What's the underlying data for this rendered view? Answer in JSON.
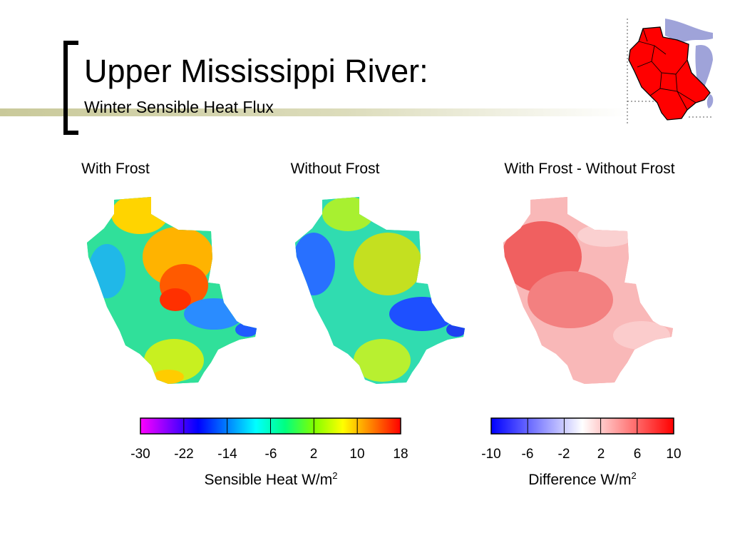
{
  "slide": {
    "title": "Upper Mississippi River:",
    "subtitle": "Winter Sensible Heat Flux"
  },
  "panels": [
    {
      "title": "With Frost",
      "scale": "sensible"
    },
    {
      "title": "Without Frost",
      "scale": "sensible"
    },
    {
      "title": "With Frost - Without Frost",
      "scale": "difference"
    }
  ],
  "colorbars": {
    "sensible": {
      "label": "Sensible Heat W/m",
      "unit_superscript": "2",
      "ticks": [
        "-30",
        "-22",
        "-14",
        "-6",
        "2",
        "10",
        "18"
      ],
      "colors": [
        "#ff00ff",
        "#7f00ff",
        "#0000ff",
        "#0080ff",
        "#00ffff",
        "#00ff80",
        "#80ff00",
        "#ffff00",
        "#ff8000",
        "#ff0000"
      ]
    },
    "difference": {
      "label": "Difference W/m",
      "unit_superscript": "2",
      "ticks": [
        "-10",
        "-6",
        "-2",
        "2",
        "6",
        "10"
      ],
      "colors": [
        "#0000ff",
        "#8080ff",
        "#ffffff",
        "#ff8080",
        "#ff0000"
      ]
    }
  },
  "colors": {
    "accent_bar": "#c9c99a",
    "bracket": "#000000",
    "basin_fill": "#ff0000",
    "lakes": "#9fa3d9"
  }
}
